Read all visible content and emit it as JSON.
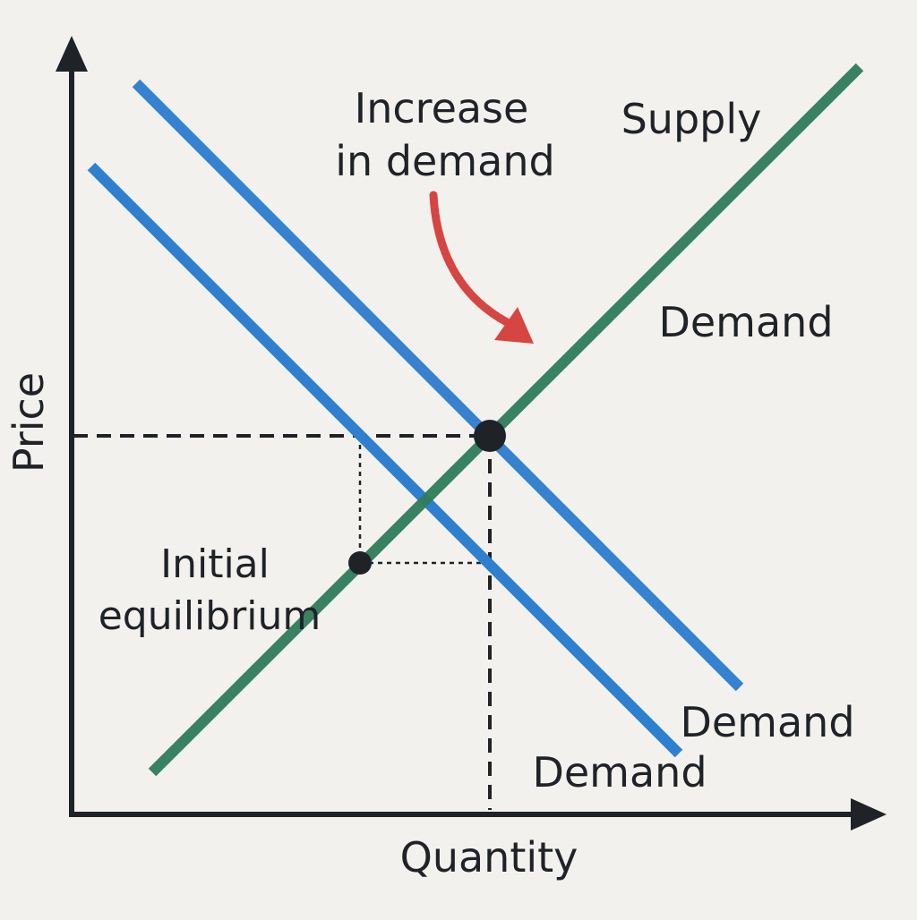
{
  "diagram": {
    "type": "supply-demand-shift",
    "labels": {
      "y_axis": "Price",
      "x_axis": "Quantity",
      "supply": "Supply",
      "demand_top": "Demand",
      "demand_new": "Demand",
      "demand_initial": "Demand",
      "increase_line1": "Increase",
      "increase_line2": "in demand",
      "initial_line1": "Initial",
      "initial_line2": "equilibrium"
    },
    "colors": {
      "background": "#f3f1ed",
      "axis": "#1f2328",
      "supply": "#2e7d5b",
      "demand": "#2f7fd1",
      "arrow": "#d64541",
      "point": "#1f2328"
    },
    "icons": {
      "shift_arrow": "curved-arrow-icon",
      "y_axis_arrow": "arrow-up-icon",
      "x_axis_arrow": "arrow-right-icon"
    }
  }
}
